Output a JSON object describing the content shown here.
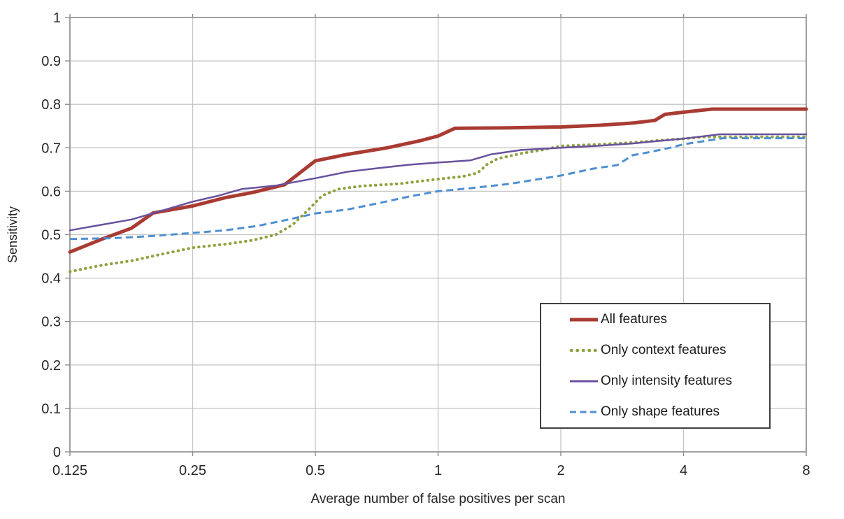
{
  "page": {
    "background": "#FFFFFF"
  },
  "chart_data": {
    "type": "line",
    "title": "",
    "xlabel": "Average number of false positives per scan",
    "ylabel": "Sensitivity",
    "x_scale": "log2",
    "xlim": [
      0.125,
      8
    ],
    "ylim": [
      0,
      1
    ],
    "x_ticks": [
      0.125,
      0.25,
      0.5,
      1,
      2,
      4,
      8
    ],
    "x_tick_labels": [
      "0.125",
      "0.25",
      "0.5",
      "1",
      "2",
      "4",
      "8"
    ],
    "y_ticks": [
      0,
      0.1,
      0.2,
      0.3,
      0.4,
      0.5,
      0.6,
      0.7,
      0.8,
      0.9,
      1
    ],
    "y_tick_labels": [
      "0",
      "0.1",
      "0.2",
      "0.3",
      "0.4",
      "0.5",
      "0.6",
      "0.7",
      "0.8",
      "0.9",
      "1"
    ],
    "grid": true,
    "legend_position": "inside-bottom-right",
    "colors": {
      "text": "#262626",
      "grid": "#C4C4C4",
      "frame": "#8C8C8C",
      "legend_border": "#404040",
      "background": "#FFFFFF",
      "all_features": "#A93B32",
      "context_features": "#8DA23F",
      "intensity_features": "#69519E",
      "shape_features": "#4E8FD2"
    },
    "series": [
      {
        "name": "All features",
        "color": "#A93B32",
        "style": "solid",
        "width": 5,
        "x": [
          0.125,
          0.15,
          0.177,
          0.2,
          0.25,
          0.3,
          0.35,
          0.42,
          0.5,
          0.6,
          0.75,
          0.9,
          1.0,
          1.1,
          1.5,
          2.0,
          2.5,
          3.0,
          3.4,
          3.6,
          4.0,
          4.7,
          8.0
        ],
        "y": [
          0.46,
          0.49,
          0.515,
          0.55,
          0.566,
          0.585,
          0.597,
          0.615,
          0.67,
          0.685,
          0.7,
          0.716,
          0.727,
          0.745,
          0.746,
          0.748,
          0.752,
          0.757,
          0.763,
          0.777,
          0.782,
          0.789,
          0.789
        ]
      },
      {
        "name": "Only context features",
        "color": "#8DA23F",
        "style": "dotted",
        "width": 4,
        "x": [
          0.125,
          0.15,
          0.177,
          0.21,
          0.25,
          0.3,
          0.35,
          0.4,
          0.44,
          0.48,
          0.52,
          0.57,
          0.65,
          0.8,
          1.0,
          1.15,
          1.25,
          1.32,
          1.4,
          1.6,
          1.8,
          2.0,
          2.5,
          3.0,
          3.5,
          4.0,
          4.5,
          8.0
        ],
        "y": [
          0.415,
          0.43,
          0.44,
          0.455,
          0.47,
          0.478,
          0.487,
          0.5,
          0.523,
          0.557,
          0.59,
          0.605,
          0.612,
          0.617,
          0.628,
          0.634,
          0.642,
          0.662,
          0.675,
          0.687,
          0.695,
          0.704,
          0.708,
          0.712,
          0.717,
          0.721,
          0.725,
          0.725
        ]
      },
      {
        "name": "Only intensity features",
        "color": "#69519E",
        "style": "solid",
        "width": 2.5,
        "x": [
          0.125,
          0.177,
          0.25,
          0.29,
          0.33,
          0.4,
          0.5,
          0.6,
          0.71,
          0.85,
          1.0,
          1.2,
          1.35,
          1.6,
          2.0,
          2.5,
          3.0,
          3.5,
          4.0,
          4.9,
          8.0
        ],
        "y": [
          0.51,
          0.535,
          0.576,
          0.59,
          0.605,
          0.613,
          0.63,
          0.645,
          0.653,
          0.661,
          0.666,
          0.671,
          0.685,
          0.695,
          0.7,
          0.705,
          0.71,
          0.716,
          0.721,
          0.731,
          0.731
        ]
      },
      {
        "name": "Only shape features",
        "color": "#4E8FD2",
        "style": "dashed",
        "width": 3,
        "x": [
          0.125,
          0.16,
          0.2,
          0.25,
          0.3,
          0.36,
          0.43,
          0.5,
          0.6,
          0.71,
          0.85,
          1.0,
          1.2,
          1.5,
          2.0,
          2.4,
          2.75,
          3.0,
          3.3,
          3.7,
          4.0,
          5.0,
          8.0
        ],
        "y": [
          0.49,
          0.492,
          0.497,
          0.504,
          0.51,
          0.52,
          0.535,
          0.549,
          0.558,
          0.572,
          0.588,
          0.6,
          0.607,
          0.617,
          0.636,
          0.652,
          0.66,
          0.683,
          0.69,
          0.7,
          0.708,
          0.722,
          0.722
        ]
      }
    ]
  }
}
